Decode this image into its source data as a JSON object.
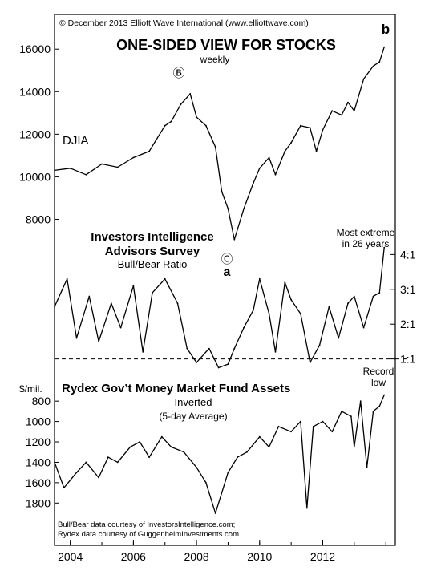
{
  "copyright": "© December 2013 Elliott Wave International (www.elliottwave.com)",
  "title": "ONE-SIDED VIEW FOR STOCKS",
  "subtitle": "weekly",
  "footnote_lines": [
    "Bull/Bear data courtesy of InvestorsIntelligence.com;",
    "Rydex data courtesy of GuggenheimInvestments.com"
  ],
  "chart_data": [
    {
      "type": "line",
      "title": "ONE-SIDED VIEW FOR STOCKS",
      "series": [
        {
          "name": "DJIA",
          "x": [
            2003.5,
            2004.0,
            2004.5,
            2005.0,
            2005.5,
            2006.0,
            2006.5,
            2007.0,
            2007.2,
            2007.5,
            2007.8,
            2008.0,
            2008.3,
            2008.6,
            2008.8,
            2009.0,
            2009.2,
            2009.5,
            2009.8,
            2010.0,
            2010.3,
            2010.5,
            2010.8,
            2011.0,
            2011.3,
            2011.6,
            2011.8,
            2012.0,
            2012.3,
            2012.6,
            2012.8,
            2013.0,
            2013.3,
            2013.6,
            2013.8,
            2013.95
          ],
          "values": [
            10300,
            10400,
            10100,
            10600,
            10450,
            10900,
            11200,
            12400,
            12600,
            13400,
            13900,
            12800,
            12400,
            11400,
            9300,
            8500,
            7050,
            8500,
            9700,
            10400,
            10900,
            10100,
            11200,
            11600,
            12400,
            12300,
            11200,
            12200,
            13100,
            12900,
            13500,
            13100,
            14600,
            15200,
            15400,
            16100
          ]
        }
      ],
      "ylim": [
        7000,
        16800
      ],
      "yticks": [
        8000,
        10000,
        12000,
        14000,
        16000
      ],
      "annotations": [
        "DJIA",
        "Ⓑ",
        "Ⓒ",
        "a",
        "b"
      ]
    },
    {
      "type": "line",
      "title": "Investors Intelligence Advisors Survey",
      "subtitle": "Bull/Bear Ratio",
      "series": [
        {
          "name": "Investors Intelligence Advisors Survey",
          "x": [
            2003.5,
            2003.9,
            2004.2,
            2004.6,
            2004.9,
            2005.3,
            2005.6,
            2006.0,
            2006.3,
            2006.6,
            2007.0,
            2007.4,
            2007.7,
            2008.0,
            2008.4,
            2008.7,
            2009.0,
            2009.2,
            2009.5,
            2009.8,
            2010.0,
            2010.3,
            2010.5,
            2010.8,
            2011.0,
            2011.3,
            2011.6,
            2011.9,
            2012.2,
            2012.5,
            2012.8,
            2013.0,
            2013.3,
            2013.6,
            2013.8,
            2013.95
          ],
          "values": [
            2.5,
            3.3,
            1.6,
            2.8,
            1.5,
            2.6,
            1.9,
            3.1,
            1.2,
            2.9,
            3.3,
            2.6,
            1.3,
            0.9,
            1.3,
            0.75,
            0.85,
            1.3,
            1.9,
            2.4,
            3.3,
            2.3,
            1.2,
            3.2,
            2.7,
            2.3,
            0.9,
            1.4,
            2.5,
            1.6,
            2.6,
            2.8,
            1.9,
            2.8,
            2.9,
            4.2
          ]
        }
      ],
      "ylim": [
        0.6,
        4.4
      ],
      "yticks_labels": [
        "1:1",
        "2:1",
        "3:1",
        "4:1"
      ],
      "yticks": [
        1,
        2,
        3,
        4
      ],
      "reference_line": 1,
      "annotation_lines": [
        "Most extreme",
        "in 26 years"
      ]
    },
    {
      "type": "line",
      "title": "Rydex Gov’t Money Market Fund Assets",
      "subtitle": "Inverted",
      "subtitle2": "(5-day Average)",
      "ylabel": "$/mil.",
      "inverted": true,
      "series": [
        {
          "name": "Rydex Gov’t Money Market Fund Assets",
          "x": [
            2003.5,
            2003.8,
            2004.2,
            2004.5,
            2004.9,
            2005.2,
            2005.5,
            2005.9,
            2006.2,
            2006.5,
            2006.9,
            2007.2,
            2007.6,
            2008.0,
            2008.3,
            2008.6,
            2009.0,
            2009.3,
            2009.6,
            2010.0,
            2010.3,
            2010.6,
            2011.0,
            2011.3,
            2011.5,
            2011.7,
            2012.0,
            2012.3,
            2012.6,
            2012.9,
            2013.0,
            2013.2,
            2013.4,
            2013.6,
            2013.8,
            2013.95
          ],
          "values": [
            1400,
            1650,
            1500,
            1400,
            1550,
            1350,
            1400,
            1250,
            1200,
            1350,
            1150,
            1250,
            1300,
            1450,
            1600,
            1900,
            1500,
            1350,
            1300,
            1150,
            1250,
            1050,
            1100,
            1000,
            1850,
            1050,
            1000,
            1100,
            900,
            950,
            1250,
            800,
            1450,
            900,
            850,
            740
          ]
        }
      ],
      "ylim": [
        1900,
        720
      ],
      "yticks": [
        800,
        1000,
        1200,
        1400,
        1600,
        1800
      ],
      "annotation_lines": [
        "Record",
        "low"
      ]
    }
  ],
  "x_axis": {
    "range": [
      2003.5,
      2014.3
    ],
    "tick_labels": [
      "2004",
      "2006",
      "2008",
      "2010",
      "2012"
    ],
    "tick_values": [
      2004,
      2006,
      2008,
      2010,
      2012
    ]
  }
}
